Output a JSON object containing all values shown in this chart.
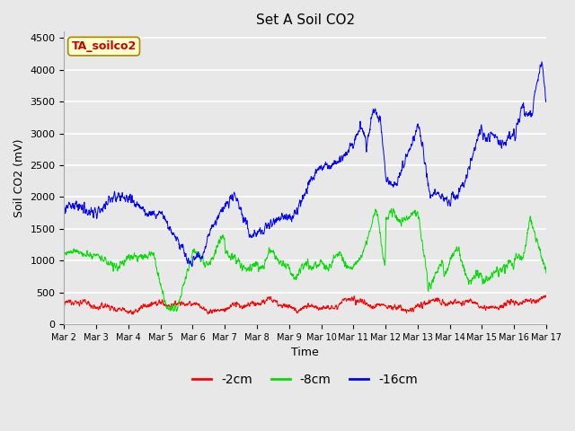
{
  "title": "Set A Soil CO2",
  "xlabel": "Time",
  "ylabel": "Soil CO2 (mV)",
  "ylim": [
    0,
    4600
  ],
  "label_box_text": "TA_soilco2",
  "bg_color": "#e8e8e8",
  "fig_bg": "#e8e8e8",
  "legend": [
    "-2cm",
    "-8cm",
    "-16cm"
  ],
  "line_colors": [
    "#ff0000",
    "#00dd00",
    "#0000ff"
  ],
  "x_tick_labels": [
    "Mar 2",
    "Mar 3",
    "Mar 4",
    "Mar 5",
    "Mar 6",
    "Mar 7",
    "Mar 8",
    "Mar 9",
    "Mar 10",
    "Mar 11",
    "Mar 12",
    "Mar 13",
    "Mar 14",
    "Mar 15",
    "Mar 16",
    "Mar 17"
  ],
  "yticks": [
    0,
    500,
    1000,
    1500,
    2000,
    2500,
    3000,
    3500,
    4000,
    4500
  ],
  "seed": 12345
}
